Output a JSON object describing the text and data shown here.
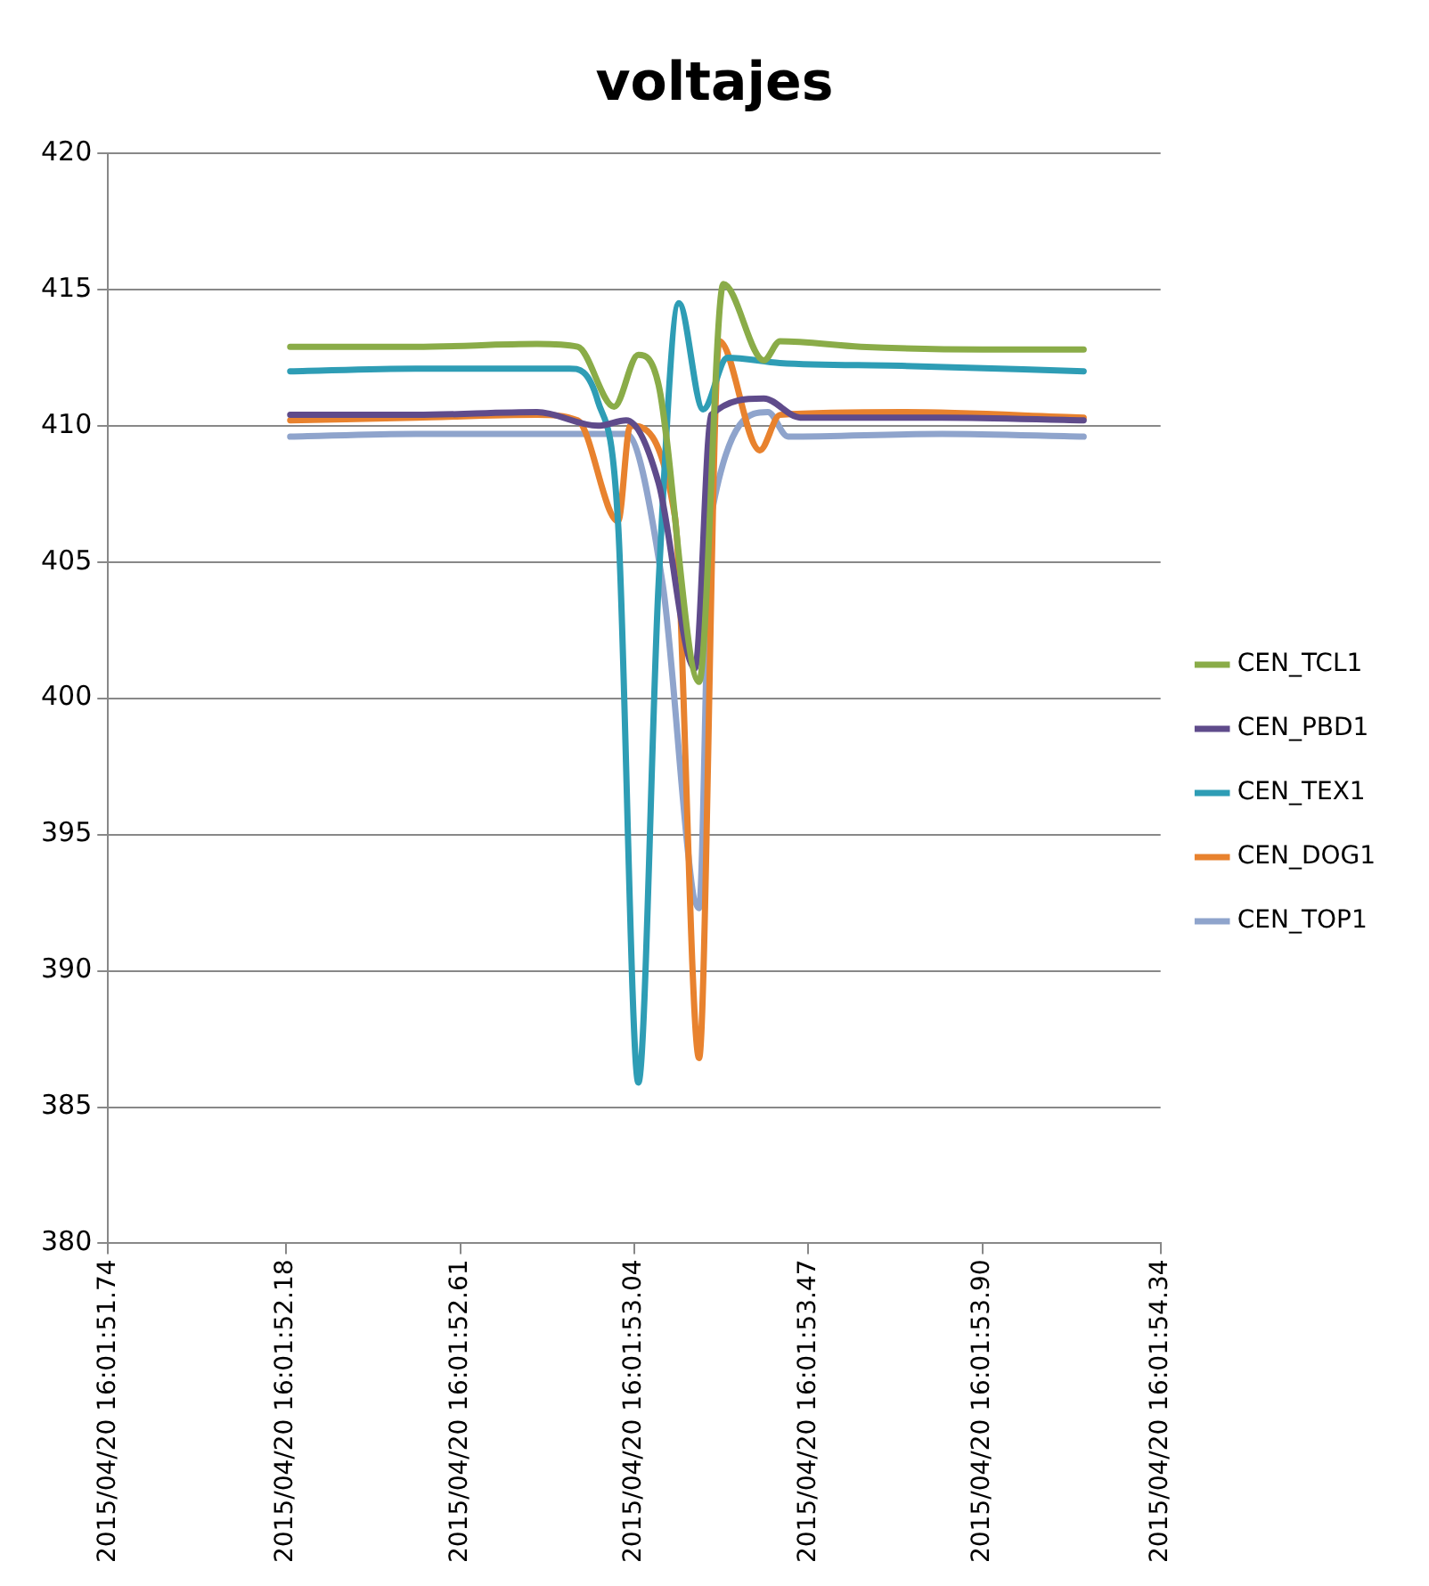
{
  "chart_data": {
    "type": "line",
    "title": "voltajes",
    "legend": "right",
    "grid": "y",
    "marker": "none",
    "line_style": "solid",
    "xlim": [
      "2015-04-20T16:01:51.74",
      "2015-04-20T16:01:54.34"
    ],
    "xticks": [
      {
        "value": "2015-04-20T16:01:51.74",
        "label": "2015/04/20 16:01:51.74"
      },
      {
        "value": "2015-04-20T16:01:52.18",
        "label": "2015/04/20 16:01:52.18"
      },
      {
        "value": "2015-04-20T16:01:52.61",
        "label": "2015/04/20 16:01:52.61"
      },
      {
        "value": "2015-04-20T16:01:53.04",
        "label": "2015/04/20 16:01:53.04"
      },
      {
        "value": "2015-04-20T16:01:53.47",
        "label": "2015/04/20 16:01:53.47"
      },
      {
        "value": "2015-04-20T16:01:53.90",
        "label": "2015/04/20 16:01:53.90"
      },
      {
        "value": "2015-04-20T16:01:54.34",
        "label": "2015/04/20 16:01:54.34"
      }
    ],
    "ylim": [
      380,
      420
    ],
    "yticks": [
      380,
      385,
      390,
      395,
      400,
      405,
      410,
      415,
      420
    ],
    "series": [
      {
        "name": "CEN_TCL1",
        "color": "#8aac48",
        "x": [
          "2015-04-20T16:01:52.19",
          "2015-04-20T16:01:52.50",
          "2015-04-20T16:01:52.80",
          "2015-04-20T16:01:52.90",
          "2015-04-20T16:01:52.99",
          "2015-04-20T16:01:53.05",
          "2015-04-20T16:01:53.10",
          "2015-04-20T16:01:53.20",
          "2015-04-20T16:01:53.26",
          "2015-04-20T16:01:53.36",
          "2015-04-20T16:01:53.40",
          "2015-04-20T16:01:53.60",
          "2015-04-20T16:01:53.90",
          "2015-04-20T16:01:54.15"
        ],
        "values": [
          412.9,
          412.9,
          413.0,
          412.9,
          410.7,
          412.6,
          411.5,
          400.6,
          415.2,
          412.4,
          413.1,
          412.9,
          412.8,
          412.8
        ]
      },
      {
        "name": "CEN_PBD1",
        "color": "#5f4b8b",
        "x": [
          "2015-04-20T16:01:52.19",
          "2015-04-20T16:01:52.50",
          "2015-04-20T16:01:52.80",
          "2015-04-20T16:01:52.95",
          "2015-04-20T16:01:53.02",
          "2015-04-20T16:01:53.10",
          "2015-04-20T16:01:53.19",
          "2015-04-20T16:01:53.23",
          "2015-04-20T16:01:53.36",
          "2015-04-20T16:01:53.45",
          "2015-04-20T16:01:53.80",
          "2015-04-20T16:01:54.15"
        ],
        "values": [
          410.4,
          410.4,
          410.5,
          410.0,
          410.2,
          407.9,
          401.1,
          410.4,
          411.0,
          410.3,
          410.3,
          410.2
        ]
      },
      {
        "name": "CEN_TEX1",
        "color": "#2e9db5",
        "x": [
          "2015-04-20T16:01:52.19",
          "2015-04-20T16:01:52.50",
          "2015-04-20T16:01:52.80",
          "2015-04-20T16:01:52.88",
          "2015-04-20T16:01:52.95",
          "2015-04-20T16:01:53.00",
          "2015-04-20T16:01:53.05",
          "2015-04-20T16:01:53.10",
          "2015-04-20T16:01:53.15",
          "2015-04-20T16:01:53.21",
          "2015-04-20T16:01:53.27",
          "2015-04-20T16:01:53.40",
          "2015-04-20T16:01:53.70",
          "2015-04-20T16:01:54.15"
        ],
        "values": [
          412.0,
          412.1,
          412.1,
          412.1,
          410.9,
          406.4,
          385.9,
          404.2,
          414.5,
          410.6,
          412.5,
          412.3,
          412.2,
          412.0
        ]
      },
      {
        "name": "CEN_DOG1",
        "color": "#e8822e",
        "x": [
          "2015-04-20T16:01:52.19",
          "2015-04-20T16:01:52.50",
          "2015-04-20T16:01:52.80",
          "2015-04-20T16:01:52.90",
          "2015-04-20T16:01:53.00",
          "2015-04-20T16:01:53.03",
          "2015-04-20T16:01:53.14",
          "2015-04-20T16:01:53.20",
          "2015-04-20T16:01:53.25",
          "2015-04-20T16:01:53.35",
          "2015-04-20T16:01:53.40",
          "2015-04-20T16:01:53.70",
          "2015-04-20T16:01:54.15"
        ],
        "values": [
          410.2,
          410.3,
          410.4,
          410.2,
          406.5,
          410.0,
          406.7,
          386.8,
          413.1,
          409.1,
          410.4,
          410.5,
          410.3
        ]
      },
      {
        "name": "CEN_TOP1",
        "color": "#8fa4cc",
        "x": [
          "2015-04-20T16:01:52.19",
          "2015-04-20T16:01:52.50",
          "2015-04-20T16:01:52.80",
          "2015-04-20T16:01:53.02",
          "2015-04-20T16:01:53.11",
          "2015-04-20T16:01:53.20",
          "2015-04-20T16:01:53.23",
          "2015-04-20T16:01:53.37",
          "2015-04-20T16:01:53.42",
          "2015-04-20T16:01:53.80",
          "2015-04-20T16:01:54.15"
        ],
        "values": [
          409.6,
          409.7,
          409.7,
          409.7,
          404.2,
          392.3,
          406.7,
          410.5,
          409.6,
          409.7,
          409.6
        ]
      }
    ]
  }
}
